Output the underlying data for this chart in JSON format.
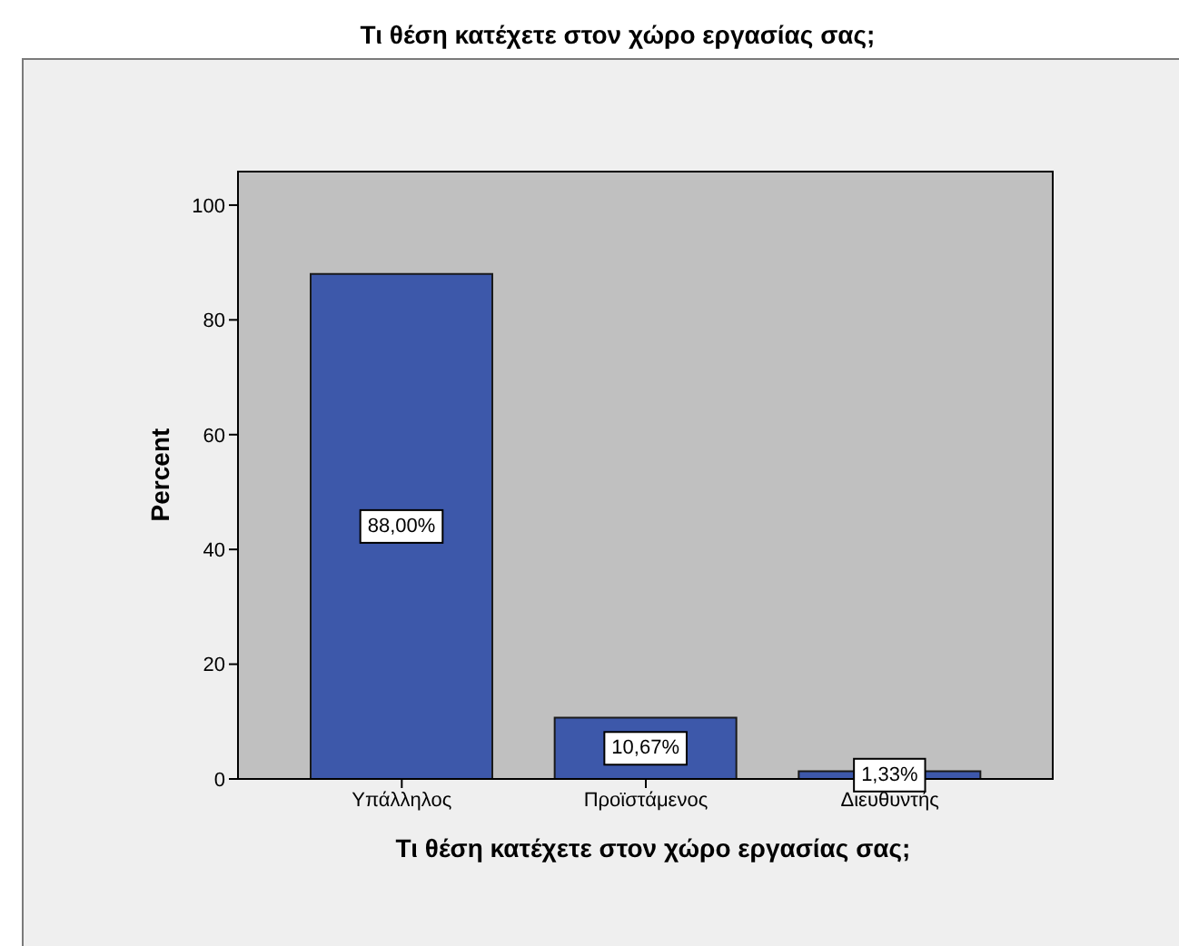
{
  "chart_data": {
    "type": "bar",
    "title": "Τι θέση κατέχετε στον χώρο εργασίας σας;",
    "xlabel": "Τι θέση κατέχετε στον χώρο εργασίας σας;",
    "ylabel": "Percent",
    "categories": [
      "Υπάλληλος",
      "Προϊστάμενος",
      "Διευθυντής"
    ],
    "values": [
      88.0,
      10.67,
      1.33
    ],
    "value_labels": [
      "88,00%",
      "10,67%",
      "1,33%"
    ],
    "color": "#3d58aa",
    "ylim": [
      0,
      106
    ],
    "yticks": [
      0,
      20,
      40,
      60,
      80,
      100
    ]
  }
}
